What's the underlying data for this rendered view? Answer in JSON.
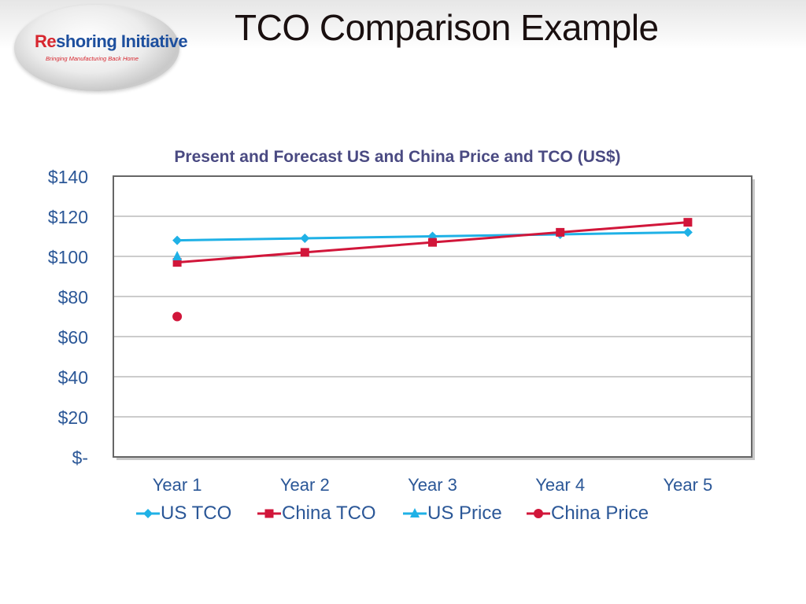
{
  "header": {
    "title": "TCO Comparison Example",
    "logo": {
      "name_prefix": "Re",
      "name_suffix": "shoring Initiative",
      "tagline": "Bringing Manufacturing Back Home"
    }
  },
  "colors": {
    "us": "#1fb1e6",
    "china": "#d1163a",
    "title_text": "#4a4a82",
    "axis_text": "#2b5797",
    "grid": "#9a9a9a",
    "plot_border": "#666666"
  },
  "chart_data": {
    "type": "line",
    "title": "Present and Forecast US and China Price and TCO (US$)",
    "categories": [
      "Year 1",
      "Year 2",
      "Year 3",
      "Year 4",
      "Year 5"
    ],
    "ylim": [
      0,
      140
    ],
    "yticks": [
      0,
      20,
      40,
      60,
      80,
      100,
      120,
      140
    ],
    "ytick_labels": [
      "$-",
      "$20",
      "$40",
      "$60",
      "$80",
      "$100",
      "$120",
      "$140"
    ],
    "grid": true,
    "legend_position": "bottom",
    "series": [
      {
        "name": "US TCO",
        "values": [
          108,
          109,
          110,
          111,
          112
        ],
        "color": "#1fb1e6",
        "marker": "diamond"
      },
      {
        "name": "China TCO",
        "values": [
          97,
          102,
          107,
          112,
          117
        ],
        "color": "#d1163a",
        "marker": "square"
      },
      {
        "name": "US Price",
        "values": [
          100,
          null,
          null,
          null,
          null
        ],
        "color": "#1fb1e6",
        "marker": "triangle"
      },
      {
        "name": "China Price",
        "values": [
          70,
          null,
          null,
          null,
          null
        ],
        "color": "#d1163a",
        "marker": "circle"
      }
    ]
  }
}
